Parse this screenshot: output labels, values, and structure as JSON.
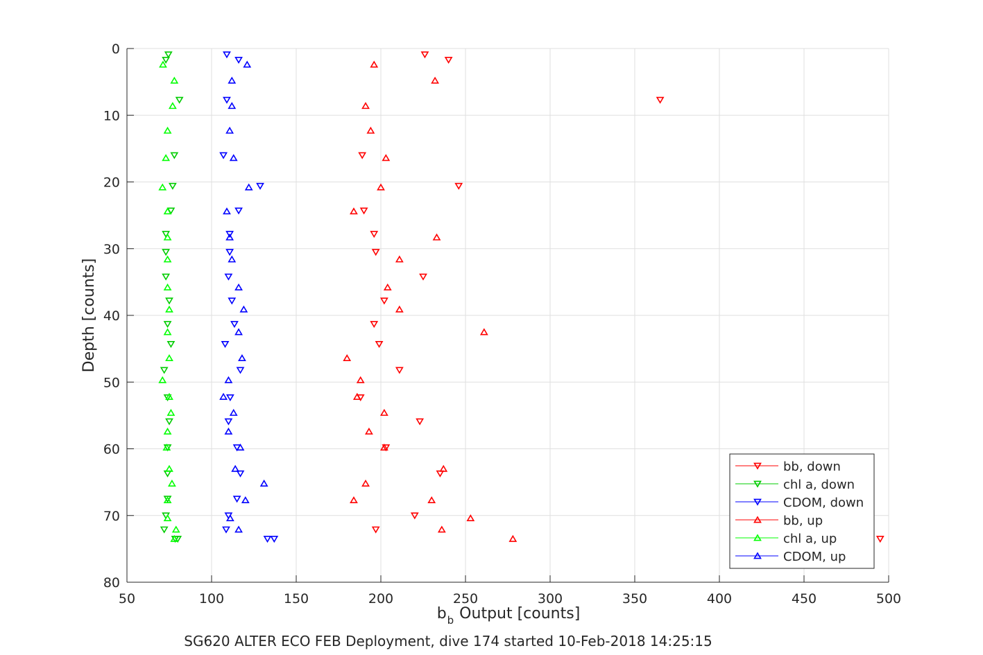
{
  "chart_data": {
    "type": "scatter",
    "title": "",
    "footer": "SG620 ALTER ECO FEB Deployment, dive 174 started 10-Feb-2018 14:25:15",
    "xlabel": {
      "base": "b",
      "sub": "b",
      "rest": " Output [counts]"
    },
    "ylabel": "Depth [counts]",
    "xlim": [
      50,
      500
    ],
    "ylim": [
      0,
      80
    ],
    "y_reversed": true,
    "grid": true,
    "xticks": [
      50,
      100,
      150,
      200,
      250,
      300,
      350,
      400,
      450,
      500
    ],
    "yticks": [
      0,
      10,
      20,
      30,
      40,
      50,
      60,
      70,
      80
    ],
    "legend_position": "bottom-right",
    "series": [
      {
        "name": "bb, down",
        "color": "#ff0000",
        "marker": "down",
        "points": [
          [
            226,
            0.9
          ],
          [
            240,
            1.7
          ],
          [
            365,
            7.7
          ],
          [
            189,
            16
          ],
          [
            246,
            20.6
          ],
          [
            190,
            24.3
          ],
          [
            196,
            27.8
          ],
          [
            197,
            30.5
          ],
          [
            225,
            34.2
          ],
          [
            202,
            37.8
          ],
          [
            196,
            41.3
          ],
          [
            199,
            44.3
          ],
          [
            211,
            48.2
          ],
          [
            188,
            52.3
          ],
          [
            223,
            55.9
          ],
          [
            203,
            59.8
          ],
          [
            235,
            63.7
          ],
          [
            220,
            70
          ],
          [
            197,
            72.1
          ],
          [
            495,
            73.5
          ]
        ]
      },
      {
        "name": "chl a, down",
        "color": "#00cc00",
        "marker": "down",
        "points": [
          [
            74.5,
            0.9
          ],
          [
            73,
            1.7
          ],
          [
            81,
            7.7
          ],
          [
            78,
            16
          ],
          [
            77,
            20.6
          ],
          [
            76,
            24.3
          ],
          [
            73,
            27.8
          ],
          [
            73,
            30.5
          ],
          [
            73,
            34.2
          ],
          [
            75,
            37.8
          ],
          [
            74,
            41.3
          ],
          [
            76,
            44.3
          ],
          [
            72,
            48.2
          ],
          [
            74,
            52.3
          ],
          [
            75,
            55.9
          ],
          [
            74,
            59.8
          ],
          [
            74,
            63.7
          ],
          [
            74,
            67.5
          ],
          [
            73,
            70
          ],
          [
            72,
            72.1
          ],
          [
            80,
            73.5
          ],
          [
            78.5,
            73.5
          ]
        ]
      },
      {
        "name": "CDOM, down",
        "color": "#0000ff",
        "marker": "down",
        "points": [
          [
            109,
            0.9
          ],
          [
            116,
            1.7
          ],
          [
            109,
            7.7
          ],
          [
            107,
            16
          ],
          [
            128.7,
            20.6
          ],
          [
            116,
            24.3
          ],
          [
            110.7,
            27.8
          ],
          [
            110.7,
            30.5
          ],
          [
            110,
            34.2
          ],
          [
            112,
            37.8
          ],
          [
            113.5,
            41.3
          ],
          [
            108,
            44.3
          ],
          [
            117,
            48.2
          ],
          [
            111,
            52.3
          ],
          [
            110,
            55.9
          ],
          [
            115,
            59.8
          ],
          [
            117,
            63.7
          ],
          [
            115,
            67.5
          ],
          [
            110,
            70
          ],
          [
            108.6,
            72.1
          ],
          [
            133,
            73.5
          ],
          [
            137,
            73.5
          ]
        ]
      },
      {
        "name": "bb, up",
        "color": "#ff0000",
        "marker": "up",
        "points": [
          [
            196,
            2.4
          ],
          [
            232,
            4.8
          ],
          [
            191,
            8.6
          ],
          [
            194,
            12.3
          ],
          [
            203,
            16.4
          ],
          [
            200,
            20.8
          ],
          [
            184,
            24.4
          ],
          [
            233,
            28.3
          ],
          [
            211,
            31.6
          ],
          [
            204,
            35.8
          ],
          [
            211,
            39.1
          ],
          [
            261,
            42.5
          ],
          [
            180,
            46.4
          ],
          [
            188,
            49.7
          ],
          [
            186,
            52.2
          ],
          [
            202,
            54.6
          ],
          [
            193,
            57.4
          ],
          [
            202,
            59.8
          ],
          [
            237,
            63
          ],
          [
            191,
            65.2
          ],
          [
            184,
            67.7
          ],
          [
            230,
            67.7
          ],
          [
            253,
            70.4
          ],
          [
            236,
            72.1
          ],
          [
            278,
            73.5
          ]
        ]
      },
      {
        "name": "chl a, up",
        "color": "#00ff00",
        "marker": "up",
        "points": [
          [
            71.3,
            2.4
          ],
          [
            78,
            4.8
          ],
          [
            77,
            8.6
          ],
          [
            74,
            12.3
          ],
          [
            73,
            16.4
          ],
          [
            71,
            20.8
          ],
          [
            74,
            24.4
          ],
          [
            74,
            28.3
          ],
          [
            74,
            31.6
          ],
          [
            74,
            35.8
          ],
          [
            75,
            39.1
          ],
          [
            74,
            42.5
          ],
          [
            75,
            46.4
          ],
          [
            71,
            49.7
          ],
          [
            75,
            52.2
          ],
          [
            76,
            54.6
          ],
          [
            74,
            57.4
          ],
          [
            73.5,
            59.8
          ],
          [
            75,
            63
          ],
          [
            76.6,
            65.2
          ],
          [
            74,
            67.7
          ],
          [
            74,
            70.4
          ],
          [
            79,
            72.1
          ],
          [
            78,
            73.5
          ]
        ]
      },
      {
        "name": "CDOM, up",
        "color": "#0000ff",
        "marker": "up",
        "points": [
          [
            121,
            2.4
          ],
          [
            112,
            4.8
          ],
          [
            112,
            8.6
          ],
          [
            110.7,
            12.3
          ],
          [
            113,
            16.4
          ],
          [
            122,
            20.8
          ],
          [
            109,
            24.4
          ],
          [
            110.7,
            28.3
          ],
          [
            112,
            31.6
          ],
          [
            116,
            35.8
          ],
          [
            119,
            39.1
          ],
          [
            116,
            42.5
          ],
          [
            118,
            46.4
          ],
          [
            110,
            49.7
          ],
          [
            107,
            52.2
          ],
          [
            113,
            54.6
          ],
          [
            110,
            57.4
          ],
          [
            117,
            59.8
          ],
          [
            114,
            63
          ],
          [
            131,
            65.2
          ],
          [
            120,
            67.7
          ],
          [
            111,
            70.4
          ],
          [
            116,
            72.1
          ]
        ]
      }
    ]
  }
}
